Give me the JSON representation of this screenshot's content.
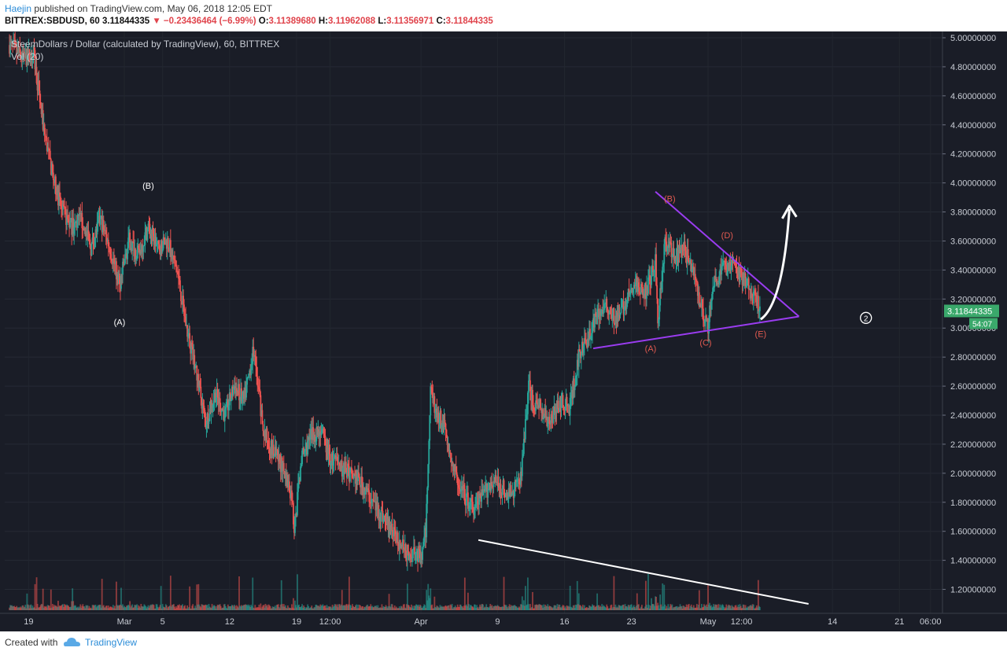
{
  "header": {
    "author": "Haejin",
    "published": " published on TradingView.com, May 06, 2018 12:05 EDT",
    "symbol": "BITTREX:SBDUSD, 60",
    "last": "3.11844335",
    "change": "−0.23436464 (−6.99%)",
    "o_label": "O:",
    "o_val": "3.11389680",
    "h_label": "H:",
    "h_val": "3.11962088",
    "l_label": "L:",
    "l_val": "3.11356971",
    "c_label": "C:",
    "c_val": "3.11844335"
  },
  "legend": {
    "title": "SteemDollars / Dollar (calculated by TradingView), 60, BITTREX",
    "vol": "Vol (20)"
  },
  "footer": {
    "created": "Created with",
    "brand": "TradingView"
  },
  "colors": {
    "background": "#1a1d27",
    "up": "#26a69a",
    "down": "#ef5350",
    "triangle": "#9a3cf0",
    "wave_label": "#e05a50",
    "price_badge": "#3aa86b"
  },
  "chart_data": {
    "type": "candlestick",
    "y_axis": {
      "min": 1.1,
      "max": 5.0,
      "ticks": [
        "5.00000000",
        "4.80000000",
        "4.60000000",
        "4.40000000",
        "4.20000000",
        "4.00000000",
        "3.80000000",
        "3.60000000",
        "3.40000000",
        "3.20000000",
        "3.00000000",
        "2.80000000",
        "2.60000000",
        "2.40000000",
        "2.20000000",
        "2.00000000",
        "1.80000000",
        "1.60000000",
        "1.40000000",
        "1.20000000"
      ]
    },
    "x_axis": {
      "ticks": [
        "19",
        "Mar",
        "5",
        "12",
        "19",
        "12:00",
        "Apr",
        "9",
        "16",
        "23",
        "May",
        "12:00",
        "14",
        "21",
        "06:00"
      ]
    },
    "price_path": [
      [
        "02-17 00:00",
        4.95
      ],
      [
        "02-18 12:00",
        4.85
      ],
      [
        "02-19 12:00",
        4.9
      ],
      [
        "02-20 12:00",
        4.4
      ],
      [
        "02-21 12:00",
        4.05
      ],
      [
        "02-22 12:00",
        3.8
      ],
      [
        "02-23 12:00",
        3.7
      ],
      [
        "02-24 12:00",
        3.75
      ],
      [
        "02-25 12:00",
        3.55
      ],
      [
        "02-26 12:00",
        3.75
      ],
      [
        "02-27 12:00",
        3.55
      ],
      [
        "02-28 12:00",
        3.3
      ],
      [
        "03-01 12:00",
        3.6
      ],
      [
        "03-02 12:00",
        3.5
      ],
      [
        "03-03 12:00",
        3.7
      ],
      [
        "03-04 12:00",
        3.55
      ],
      [
        "03-05 12:00",
        3.6
      ],
      [
        "03-06 12:00",
        3.4
      ],
      [
        "03-07 12:00",
        3.0
      ],
      [
        "03-08 12:00",
        2.7
      ],
      [
        "03-09 12:00",
        2.35
      ],
      [
        "03-10 12:00",
        2.55
      ],
      [
        "03-11 12:00",
        2.4
      ],
      [
        "03-12 12:00",
        2.6
      ],
      [
        "03-13 12:00",
        2.5
      ],
      [
        "03-14 12:00",
        2.85
      ],
      [
        "03-15 12:00",
        2.3
      ],
      [
        "03-16 12:00",
        2.15
      ],
      [
        "03-17 12:00",
        2.05
      ],
      [
        "03-18 12:00",
        1.85
      ],
      [
        "03-18 18:00",
        1.6
      ],
      [
        "03-19 12:00",
        2.1
      ],
      [
        "03-20 12:00",
        2.25
      ],
      [
        "03-21 12:00",
        2.3
      ],
      [
        "03-22 12:00",
        2.1
      ],
      [
        "03-23 12:00",
        2.05
      ],
      [
        "03-24 12:00",
        2.0
      ],
      [
        "03-25 12:00",
        1.95
      ],
      [
        "03-26 12:00",
        1.85
      ],
      [
        "03-27 12:00",
        1.75
      ],
      [
        "03-28 12:00",
        1.65
      ],
      [
        "03-29 12:00",
        1.55
      ],
      [
        "03-30 12:00",
        1.45
      ],
      [
        "03-31 12:00",
        1.45
      ],
      [
        "04-01 00:00",
        1.4
      ],
      [
        "04-01 12:00",
        1.6
      ],
      [
        "04-02 00:00",
        2.6
      ],
      [
        "04-02 12:00",
        2.45
      ],
      [
        "04-03 12:00",
        2.3
      ],
      [
        "04-04 12:00",
        2.0
      ],
      [
        "04-05 12:00",
        1.85
      ],
      [
        "04-06 12:00",
        1.75
      ],
      [
        "04-07 12:00",
        1.85
      ],
      [
        "04-08 12:00",
        1.95
      ],
      [
        "04-09 12:00",
        1.9
      ],
      [
        "04-10 12:00",
        1.85
      ],
      [
        "04-11 12:00",
        2.0
      ],
      [
        "04-12 06:00",
        2.6
      ],
      [
        "04-12 18:00",
        2.5
      ],
      [
        "04-13 12:00",
        2.45
      ],
      [
        "04-14 12:00",
        2.35
      ],
      [
        "04-15 12:00",
        2.5
      ],
      [
        "04-16 12:00",
        2.45
      ],
      [
        "04-17 12:00",
        2.8
      ],
      [
        "04-18 12:00",
        2.95
      ],
      [
        "04-19 12:00",
        3.1
      ],
      [
        "04-20 12:00",
        3.15
      ],
      [
        "04-21 12:00",
        3.05
      ],
      [
        "04-22 12:00",
        3.2
      ],
      [
        "04-23 12:00",
        3.3
      ],
      [
        "04-24 12:00",
        3.25
      ],
      [
        "04-25 12:00",
        3.45
      ],
      [
        "04-25 18:00",
        3.05
      ],
      [
        "04-26 12:00",
        3.6
      ],
      [
        "04-27 12:00",
        3.5
      ],
      [
        "04-28 12:00",
        3.55
      ],
      [
        "04-29 12:00",
        3.35
      ],
      [
        "04-30 12:00",
        3.1
      ],
      [
        "05-01 00:00",
        3.0
      ],
      [
        "05-01 12:00",
        3.3
      ],
      [
        "05-02 12:00",
        3.4
      ],
      [
        "05-03 12:00",
        3.45
      ],
      [
        "05-04 12:00",
        3.35
      ],
      [
        "05-05 12:00",
        3.25
      ],
      [
        "05-06 12:00",
        3.12
      ]
    ],
    "wave_labels_white": [
      "(A)",
      "(B)"
    ],
    "wave_labels_red": [
      "(A)",
      "(B)",
      "(C)",
      "(D)",
      "(E)"
    ],
    "circle_label": "2",
    "current_price_badge": "3.11844335",
    "countdown_badge": "54:07"
  }
}
